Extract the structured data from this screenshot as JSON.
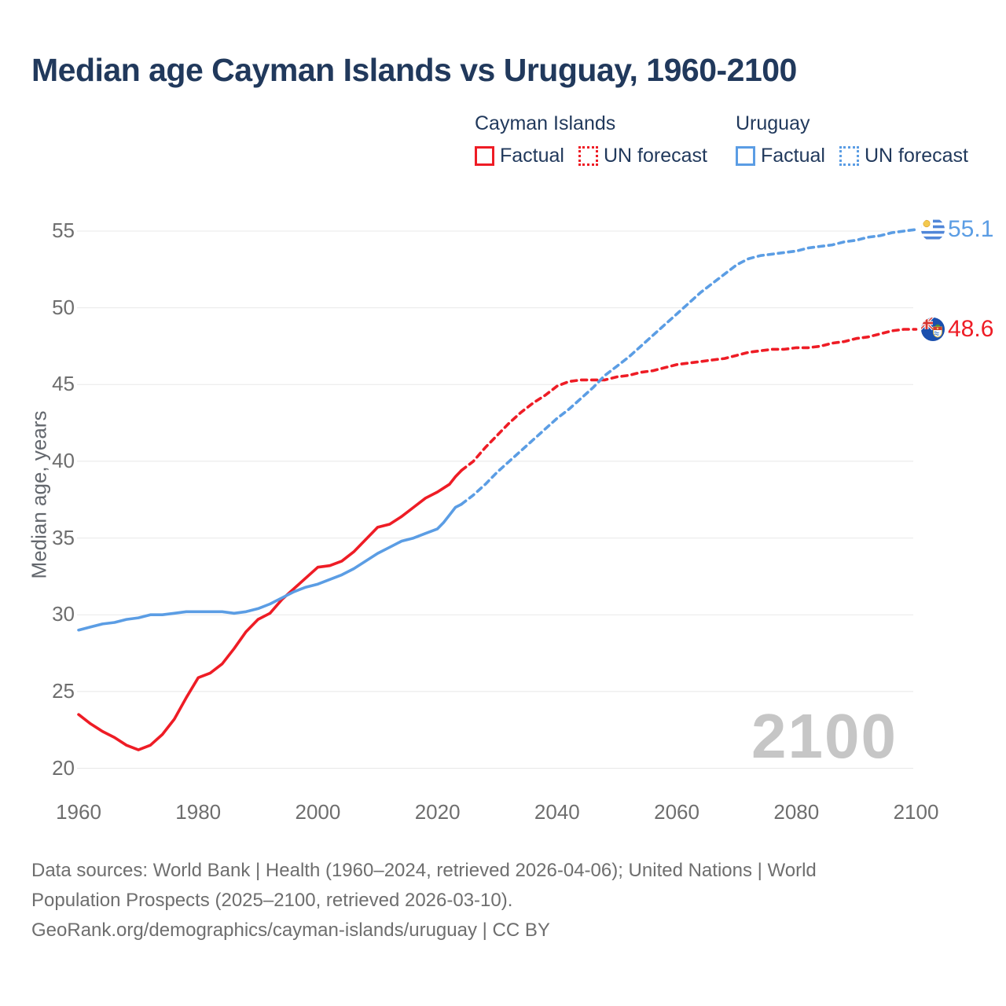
{
  "title": "Median age Cayman Islands vs Uruguay, 1960-2100",
  "legend": {
    "groups": [
      {
        "country": "Cayman Islands",
        "factual_label": "Factual",
        "forecast_label": "UN forecast",
        "color": "#ee1c25"
      },
      {
        "country": "Uruguay",
        "factual_label": "Factual",
        "forecast_label": "UN forecast",
        "color": "#5b9de4"
      }
    ]
  },
  "watermark": "2100",
  "footer": {
    "lines": [
      "Data sources: World Bank | Health (1960–2024, retrieved 2026-04-06); United Nations | World",
      "Population Prospects (2025–2100, retrieved 2026-03-10).",
      "GeoRank.org/demographics/cayman-islands/uruguay | CC BY"
    ]
  },
  "chart_data": {
    "type": "line",
    "title": "Median age Cayman Islands vs Uruguay, 1960-2100",
    "xlabel": "",
    "ylabel": "Median age, years",
    "xlim": [
      1960,
      2100
    ],
    "ylim": [
      20,
      55
    ],
    "grid": true,
    "legend_position": "top",
    "xticks": [
      1960,
      1980,
      2000,
      2020,
      2040,
      2060,
      2080,
      2100
    ],
    "yticks": [
      20,
      25,
      30,
      35,
      40,
      45,
      50,
      55
    ],
    "series": [
      {
        "name": "Cayman Islands — Factual",
        "style": "solid",
        "color": "#ee1c25",
        "points": [
          [
            1960,
            23.5
          ],
          [
            1962,
            22.9
          ],
          [
            1964,
            22.4
          ],
          [
            1966,
            22.0
          ],
          [
            1968,
            21.5
          ],
          [
            1970,
            21.2
          ],
          [
            1972,
            21.5
          ],
          [
            1974,
            22.2
          ],
          [
            1976,
            23.2
          ],
          [
            1978,
            24.6
          ],
          [
            1980,
            25.9
          ],
          [
            1982,
            26.2
          ],
          [
            1984,
            26.8
          ],
          [
            1986,
            27.8
          ],
          [
            1988,
            28.9
          ],
          [
            1990,
            29.7
          ],
          [
            1992,
            30.1
          ],
          [
            1994,
            31.0
          ],
          [
            1996,
            31.7
          ],
          [
            1998,
            32.4
          ],
          [
            2000,
            33.1
          ],
          [
            2002,
            33.2
          ],
          [
            2004,
            33.5
          ],
          [
            2006,
            34.1
          ],
          [
            2008,
            34.9
          ],
          [
            2010,
            35.7
          ],
          [
            2012,
            35.9
          ],
          [
            2014,
            36.4
          ],
          [
            2016,
            37.0
          ],
          [
            2018,
            37.6
          ],
          [
            2020,
            38.0
          ],
          [
            2022,
            38.5
          ],
          [
            2023,
            39.0
          ],
          [
            2024,
            39.4
          ]
        ]
      },
      {
        "name": "Cayman Islands — UN forecast",
        "style": "dashed",
        "color": "#ee1c25",
        "points": [
          [
            2024,
            39.4
          ],
          [
            2026,
            40.0
          ],
          [
            2028,
            40.9
          ],
          [
            2030,
            41.7
          ],
          [
            2032,
            42.5
          ],
          [
            2034,
            43.2
          ],
          [
            2036,
            43.8
          ],
          [
            2038,
            44.3
          ],
          [
            2040,
            44.9
          ],
          [
            2042,
            45.2
          ],
          [
            2044,
            45.3
          ],
          [
            2046,
            45.3
          ],
          [
            2048,
            45.3
          ],
          [
            2050,
            45.5
          ],
          [
            2052,
            45.6
          ],
          [
            2054,
            45.8
          ],
          [
            2056,
            45.9
          ],
          [
            2058,
            46.1
          ],
          [
            2060,
            46.3
          ],
          [
            2062,
            46.4
          ],
          [
            2064,
            46.5
          ],
          [
            2066,
            46.6
          ],
          [
            2068,
            46.7
          ],
          [
            2070,
            46.9
          ],
          [
            2072,
            47.1
          ],
          [
            2074,
            47.2
          ],
          [
            2076,
            47.3
          ],
          [
            2078,
            47.3
          ],
          [
            2080,
            47.4
          ],
          [
            2082,
            47.4
          ],
          [
            2084,
            47.5
          ],
          [
            2086,
            47.7
          ],
          [
            2088,
            47.8
          ],
          [
            2090,
            48.0
          ],
          [
            2092,
            48.1
          ],
          [
            2094,
            48.3
          ],
          [
            2096,
            48.5
          ],
          [
            2098,
            48.6
          ],
          [
            2100,
            48.6
          ]
        ]
      },
      {
        "name": "Uruguay — Factual",
        "style": "solid",
        "color": "#5b9de4",
        "points": [
          [
            1960,
            29.0
          ],
          [
            1962,
            29.2
          ],
          [
            1964,
            29.4
          ],
          [
            1966,
            29.5
          ],
          [
            1968,
            29.7
          ],
          [
            1970,
            29.8
          ],
          [
            1972,
            30.0
          ],
          [
            1974,
            30.0
          ],
          [
            1976,
            30.1
          ],
          [
            1978,
            30.2
          ],
          [
            1980,
            30.2
          ],
          [
            1982,
            30.2
          ],
          [
            1984,
            30.2
          ],
          [
            1986,
            30.1
          ],
          [
            1988,
            30.2
          ],
          [
            1990,
            30.4
          ],
          [
            1992,
            30.7
          ],
          [
            1994,
            31.1
          ],
          [
            1996,
            31.5
          ],
          [
            1998,
            31.8
          ],
          [
            2000,
            32.0
          ],
          [
            2002,
            32.3
          ],
          [
            2004,
            32.6
          ],
          [
            2006,
            33.0
          ],
          [
            2008,
            33.5
          ],
          [
            2010,
            34.0
          ],
          [
            2012,
            34.4
          ],
          [
            2014,
            34.8
          ],
          [
            2016,
            35.0
          ],
          [
            2018,
            35.3
          ],
          [
            2020,
            35.6
          ],
          [
            2021,
            36.0
          ],
          [
            2022,
            36.5
          ],
          [
            2023,
            37.0
          ],
          [
            2024,
            37.2
          ]
        ]
      },
      {
        "name": "Uruguay — UN forecast",
        "style": "dashed",
        "color": "#5b9de4",
        "points": [
          [
            2024,
            37.2
          ],
          [
            2026,
            37.8
          ],
          [
            2028,
            38.5
          ],
          [
            2030,
            39.3
          ],
          [
            2032,
            40.0
          ],
          [
            2034,
            40.7
          ],
          [
            2036,
            41.4
          ],
          [
            2038,
            42.1
          ],
          [
            2040,
            42.8
          ],
          [
            2042,
            43.4
          ],
          [
            2044,
            44.1
          ],
          [
            2046,
            44.8
          ],
          [
            2048,
            45.6
          ],
          [
            2050,
            46.2
          ],
          [
            2052,
            46.8
          ],
          [
            2054,
            47.5
          ],
          [
            2056,
            48.2
          ],
          [
            2058,
            48.9
          ],
          [
            2060,
            49.6
          ],
          [
            2062,
            50.3
          ],
          [
            2064,
            51.0
          ],
          [
            2066,
            51.6
          ],
          [
            2068,
            52.2
          ],
          [
            2070,
            52.8
          ],
          [
            2072,
            53.2
          ],
          [
            2074,
            53.4
          ],
          [
            2076,
            53.5
          ],
          [
            2078,
            53.6
          ],
          [
            2080,
            53.7
          ],
          [
            2082,
            53.9
          ],
          [
            2084,
            54.0
          ],
          [
            2086,
            54.1
          ],
          [
            2088,
            54.3
          ],
          [
            2090,
            54.4
          ],
          [
            2092,
            54.6
          ],
          [
            2094,
            54.7
          ],
          [
            2096,
            54.9
          ],
          [
            2098,
            55.0
          ],
          [
            2100,
            55.1
          ]
        ]
      }
    ],
    "end_labels": [
      {
        "series": "Uruguay",
        "value": "55.1",
        "color": "#5b9de4"
      },
      {
        "series": "Cayman Islands",
        "value": "48.6",
        "color": "#ee1c25"
      }
    ]
  }
}
